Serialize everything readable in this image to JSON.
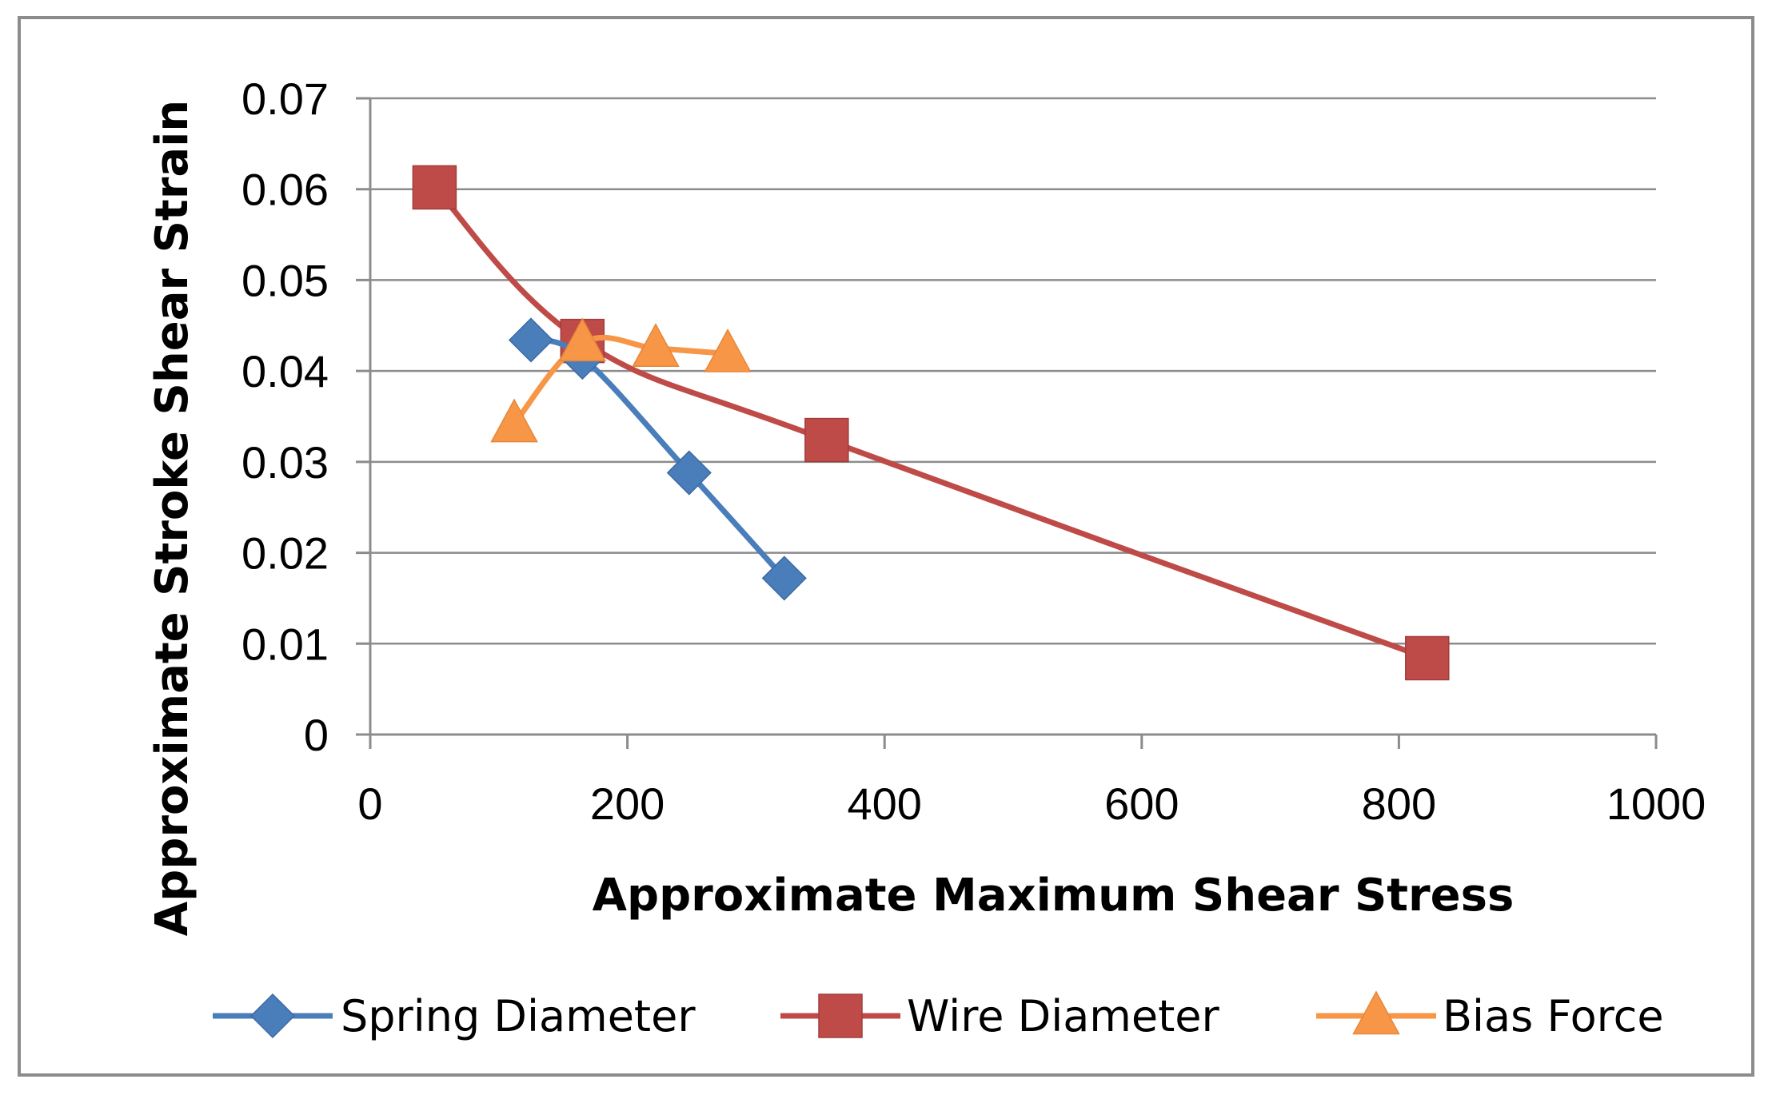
{
  "chart_data": {
    "type": "line",
    "title": "",
    "xlabel": "Approximate Maximum Shear Stress",
    "ylabel": "Approximate Stroke Shear  Strain",
    "xlim": [
      0,
      1000
    ],
    "ylim": [
      0,
      0.07
    ],
    "xticks": [
      0,
      200,
      400,
      600,
      800,
      1000
    ],
    "yticks": [
      0,
      0.01,
      0.02,
      0.03,
      0.04,
      0.05,
      0.06,
      0.07
    ],
    "xtick_labels": [
      "0",
      "200",
      "400",
      "600",
      "800",
      "1000"
    ],
    "ytick_labels": [
      "0",
      "0.01",
      "0.02",
      "0.03",
      "0.04",
      "0.05",
      "0.06",
      "0.07"
    ],
    "grid": "horizontal",
    "legend_position": "bottom",
    "series": [
      {
        "name": "Spring Diameter",
        "color": "#4a7ebb",
        "marker": "diamond",
        "points": [
          [
            125,
            0.0434
          ],
          [
            165,
            0.0415
          ],
          [
            248,
            0.0288
          ],
          [
            322,
            0.0172
          ]
        ]
      },
      {
        "name": "Wire Diameter",
        "color": "#be4b48",
        "marker": "square",
        "points": [
          [
            50,
            0.0602
          ],
          [
            165,
            0.0433
          ],
          [
            355,
            0.0324
          ],
          [
            822,
            0.0084
          ]
        ]
      },
      {
        "name": "Bias Force",
        "color": "#f79646",
        "marker": "triangle",
        "points": [
          [
            112,
            0.0342
          ],
          [
            165,
            0.0431
          ],
          [
            222,
            0.0425
          ],
          [
            278,
            0.0419
          ]
        ]
      }
    ]
  }
}
